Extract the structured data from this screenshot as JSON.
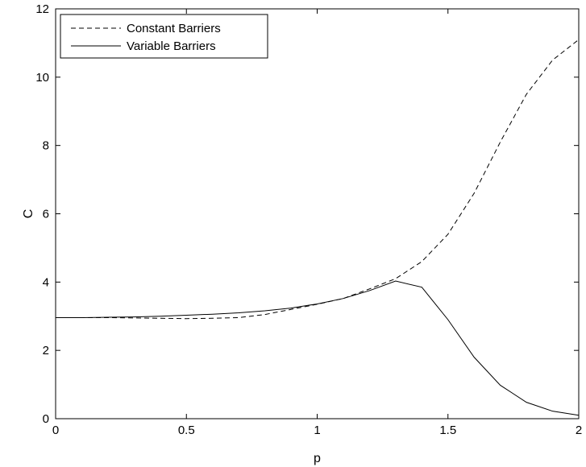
{
  "chart_data": {
    "type": "line",
    "title": "",
    "xlabel": "p",
    "ylabel": "C",
    "xlim": [
      0,
      2
    ],
    "ylim": [
      0,
      12
    ],
    "xticks": [
      "0",
      "0.5",
      "1",
      "1.5",
      "2"
    ],
    "yticks": [
      "0",
      "2",
      "4",
      "6",
      "8",
      "10",
      "12"
    ],
    "grid": false,
    "legend_position": "top-left",
    "series": [
      {
        "name": "Constant Barriers",
        "style": "dashed",
        "color": "#000000",
        "x": [
          0,
          0.1,
          0.2,
          0.3,
          0.4,
          0.5,
          0.6,
          0.7,
          0.8,
          0.9,
          1.0,
          1.1,
          1.2,
          1.3,
          1.4,
          1.5,
          1.6,
          1.7,
          1.8,
          1.9,
          2.0
        ],
        "y": [
          2.96,
          2.96,
          2.96,
          2.95,
          2.94,
          2.93,
          2.94,
          2.96,
          3.05,
          3.2,
          3.35,
          3.52,
          3.8,
          4.1,
          4.6,
          5.4,
          6.6,
          8.1,
          9.5,
          10.5,
          11.1
        ]
      },
      {
        "name": "Variable Barriers",
        "style": "solid",
        "color": "#000000",
        "x": [
          0,
          0.1,
          0.2,
          0.3,
          0.4,
          0.5,
          0.6,
          0.7,
          0.8,
          0.9,
          1.0,
          1.1,
          1.2,
          1.3,
          1.4,
          1.5,
          1.6,
          1.7,
          1.8,
          1.9,
          2.0
        ],
        "y": [
          2.96,
          2.96,
          2.97,
          2.98,
          3.0,
          3.03,
          3.06,
          3.1,
          3.16,
          3.24,
          3.36,
          3.52,
          3.75,
          4.03,
          3.85,
          2.9,
          1.8,
          0.98,
          0.48,
          0.22,
          0.1
        ]
      }
    ]
  }
}
